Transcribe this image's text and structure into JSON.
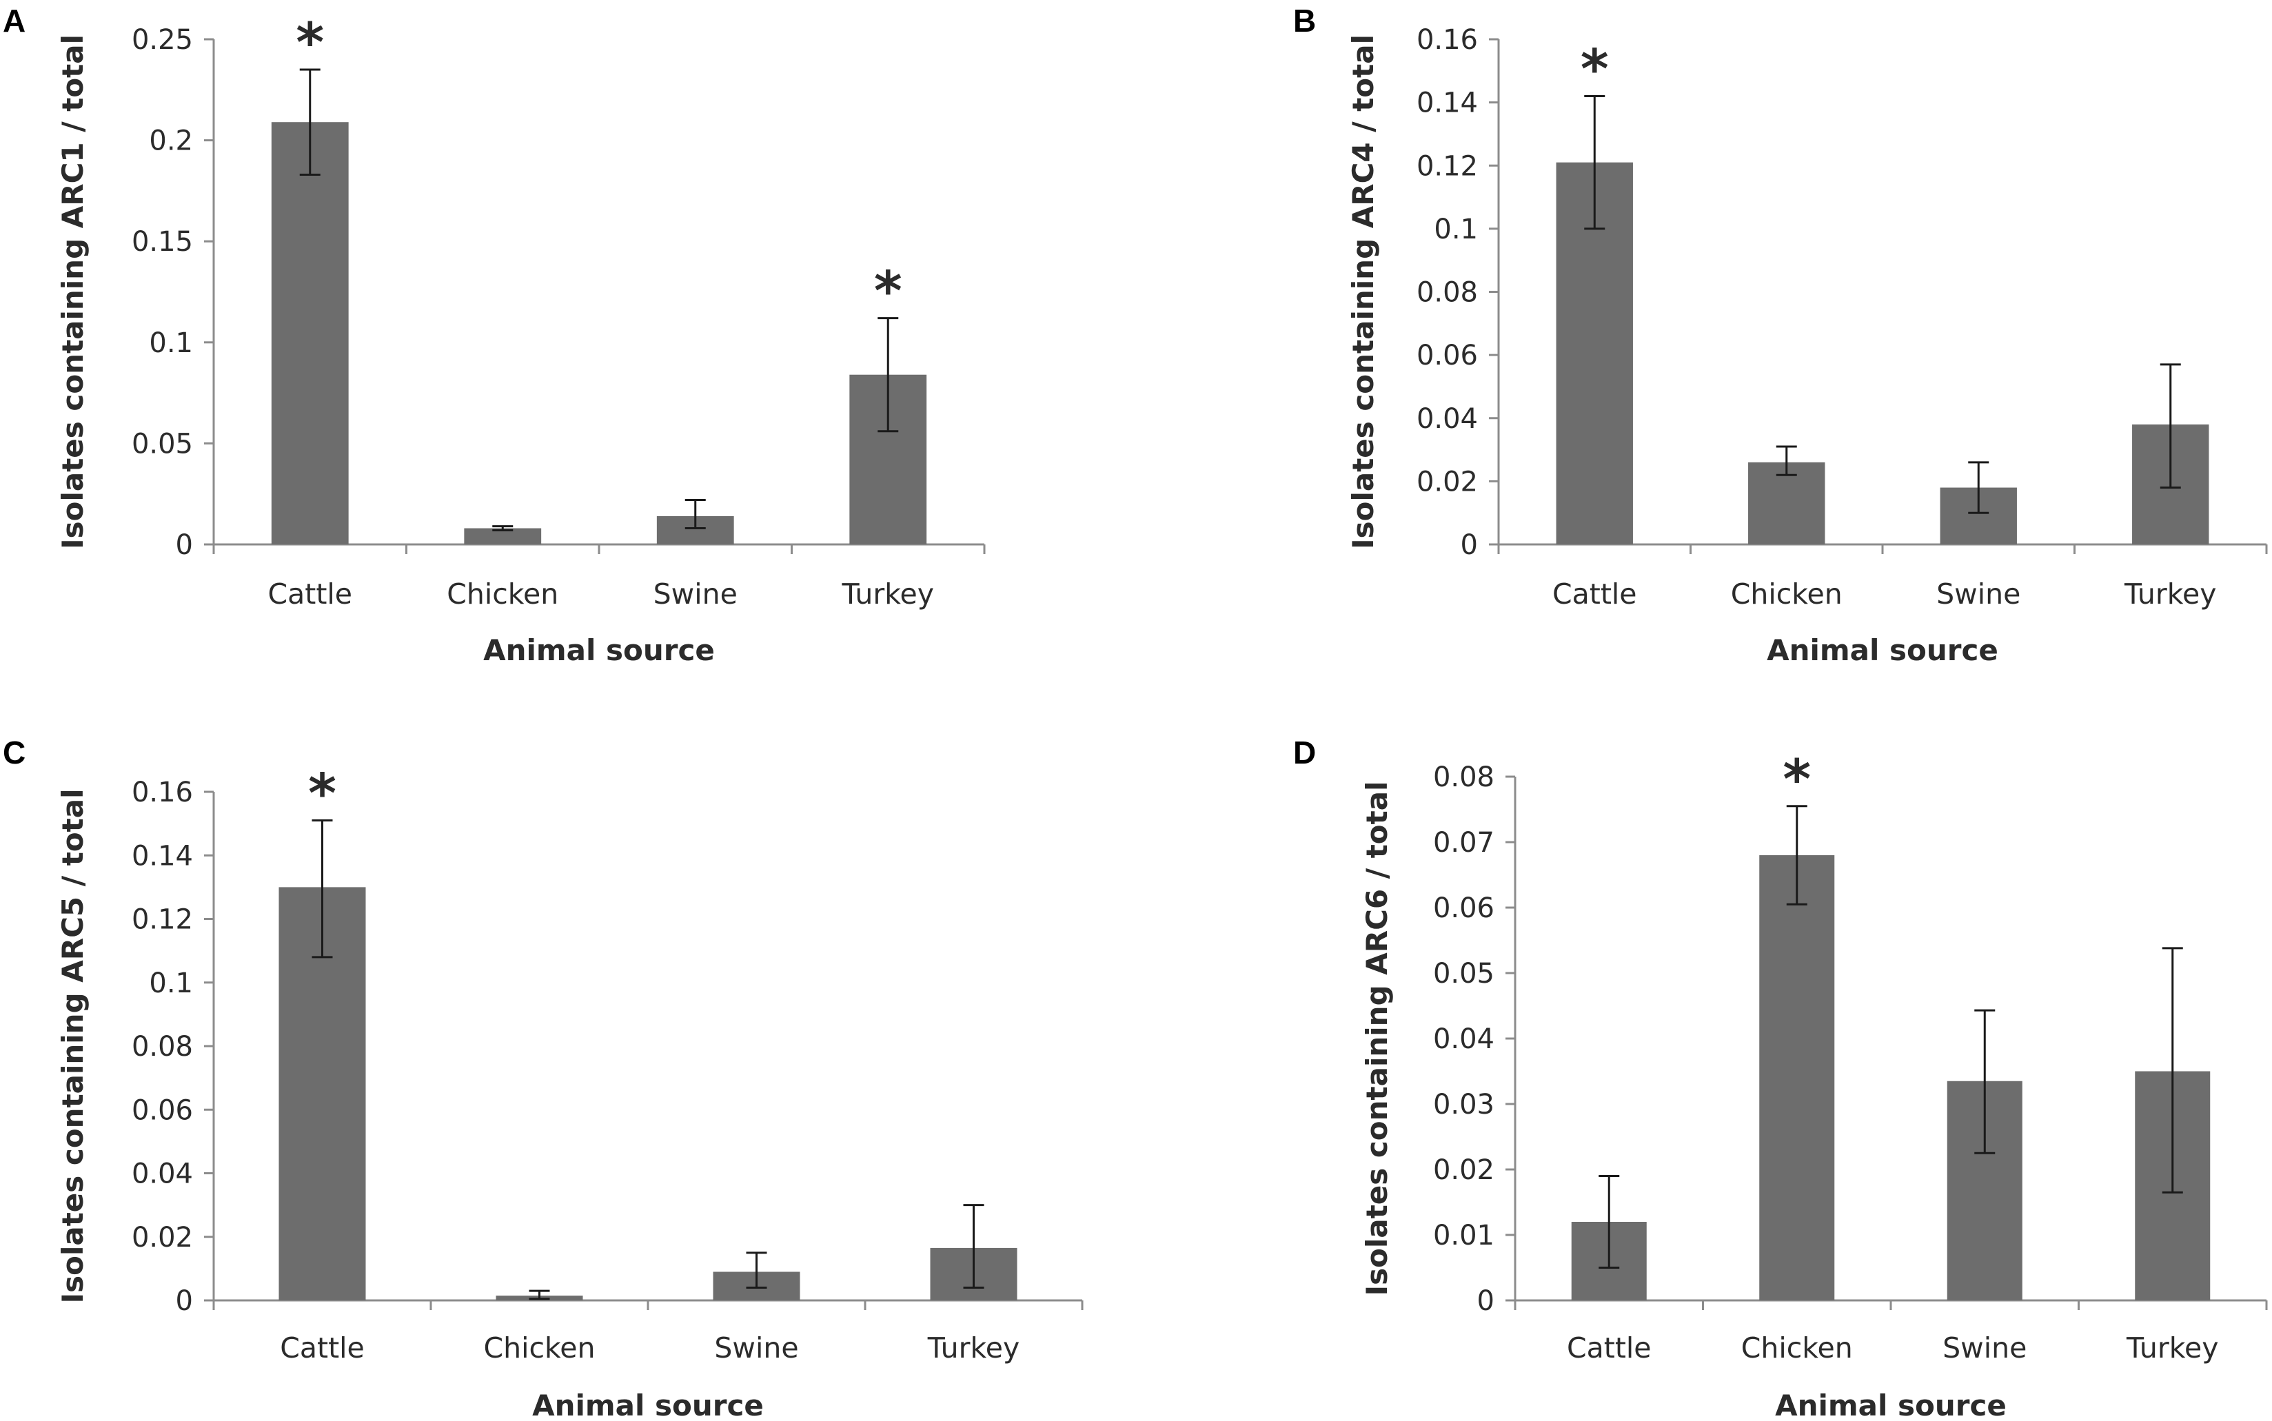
{
  "figure": {
    "bar_color": "#6d6d6d",
    "axis_color": "#8c8c8c",
    "error_color": "#1a1a1a",
    "text_color": "#2b2b2b"
  },
  "chart_data": [
    {
      "panel": "A",
      "type": "bar",
      "categories": [
        "Cattle",
        "Chicken",
        "Swine",
        "Turkey"
      ],
      "values": [
        0.209,
        0.008,
        0.014,
        0.084
      ],
      "error_low": [
        0.183,
        0.007,
        0.008,
        0.056
      ],
      "error_high": [
        0.235,
        0.009,
        0.022,
        0.112
      ],
      "significant": [
        "*",
        "",
        "",
        "*"
      ],
      "ylim": [
        0,
        0.25
      ],
      "yticks": [
        0,
        0.05,
        0.1,
        0.15,
        0.2,
        0.25
      ],
      "yticklabels": [
        "0",
        "0.05",
        "0.1",
        "0.15",
        "0.2",
        "0.25"
      ],
      "xlabel": "Animal source",
      "ylabel": "Isolates containing ARC1 / total"
    },
    {
      "panel": "B",
      "type": "bar",
      "categories": [
        "Cattle",
        "Chicken",
        "Swine",
        "Turkey"
      ],
      "values": [
        0.121,
        0.026,
        0.018,
        0.038
      ],
      "error_low": [
        0.1,
        0.022,
        0.01,
        0.018
      ],
      "error_high": [
        0.142,
        0.031,
        0.026,
        0.057
      ],
      "significant": [
        "*",
        "",
        "",
        ""
      ],
      "ylim": [
        0,
        0.16
      ],
      "yticks": [
        0,
        0.02,
        0.04,
        0.06,
        0.08,
        0.1,
        0.12,
        0.14,
        0.16
      ],
      "yticklabels": [
        "0",
        "0.02",
        "0.04",
        "0.06",
        "0.08",
        "0.1",
        "0.12",
        "0.14",
        "0.16"
      ],
      "xlabel": "Animal source",
      "ylabel": "Isolates containing ARC4 / total"
    },
    {
      "panel": "C",
      "type": "bar",
      "categories": [
        "Cattle",
        "Chicken",
        "Swine",
        "Turkey"
      ],
      "values": [
        0.13,
        0.0015,
        0.009,
        0.0165
      ],
      "error_low": [
        0.108,
        0.0005,
        0.004,
        0.004
      ],
      "error_high": [
        0.151,
        0.003,
        0.015,
        0.03
      ],
      "significant": [
        "*",
        "",
        "",
        ""
      ],
      "ylim": [
        0,
        0.16
      ],
      "yticks": [
        0,
        0.02,
        0.04,
        0.06,
        0.08,
        0.1,
        0.12,
        0.14,
        0.16
      ],
      "yticklabels": [
        "0",
        "0.02",
        "0.04",
        "0.06",
        "0.08",
        "0.1",
        "0.12",
        "0.14",
        "0.16"
      ],
      "xlabel": "Animal source",
      "ylabel": "Isolates containing ARC5 / total"
    },
    {
      "panel": "D",
      "type": "bar",
      "categories": [
        "Cattle",
        "Chicken",
        "Swine",
        "Turkey"
      ],
      "values": [
        0.012,
        0.068,
        0.0335,
        0.035
      ],
      "error_low": [
        0.005,
        0.0605,
        0.0225,
        0.0165
      ],
      "error_high": [
        0.019,
        0.0755,
        0.0443,
        0.0538
      ],
      "significant": [
        "",
        "*",
        "",
        ""
      ],
      "ylim": [
        0,
        0.08
      ],
      "yticks": [
        0,
        0.01,
        0.02,
        0.03,
        0.04,
        0.05,
        0.06,
        0.07,
        0.08
      ],
      "yticklabels": [
        "0",
        "0.01",
        "0.02",
        "0.03",
        "0.04",
        "0.05",
        "0.06",
        "0.07",
        "0.08"
      ],
      "xlabel": "Animal source",
      "ylabel": "Isolates containing ARC6 / total"
    }
  ]
}
